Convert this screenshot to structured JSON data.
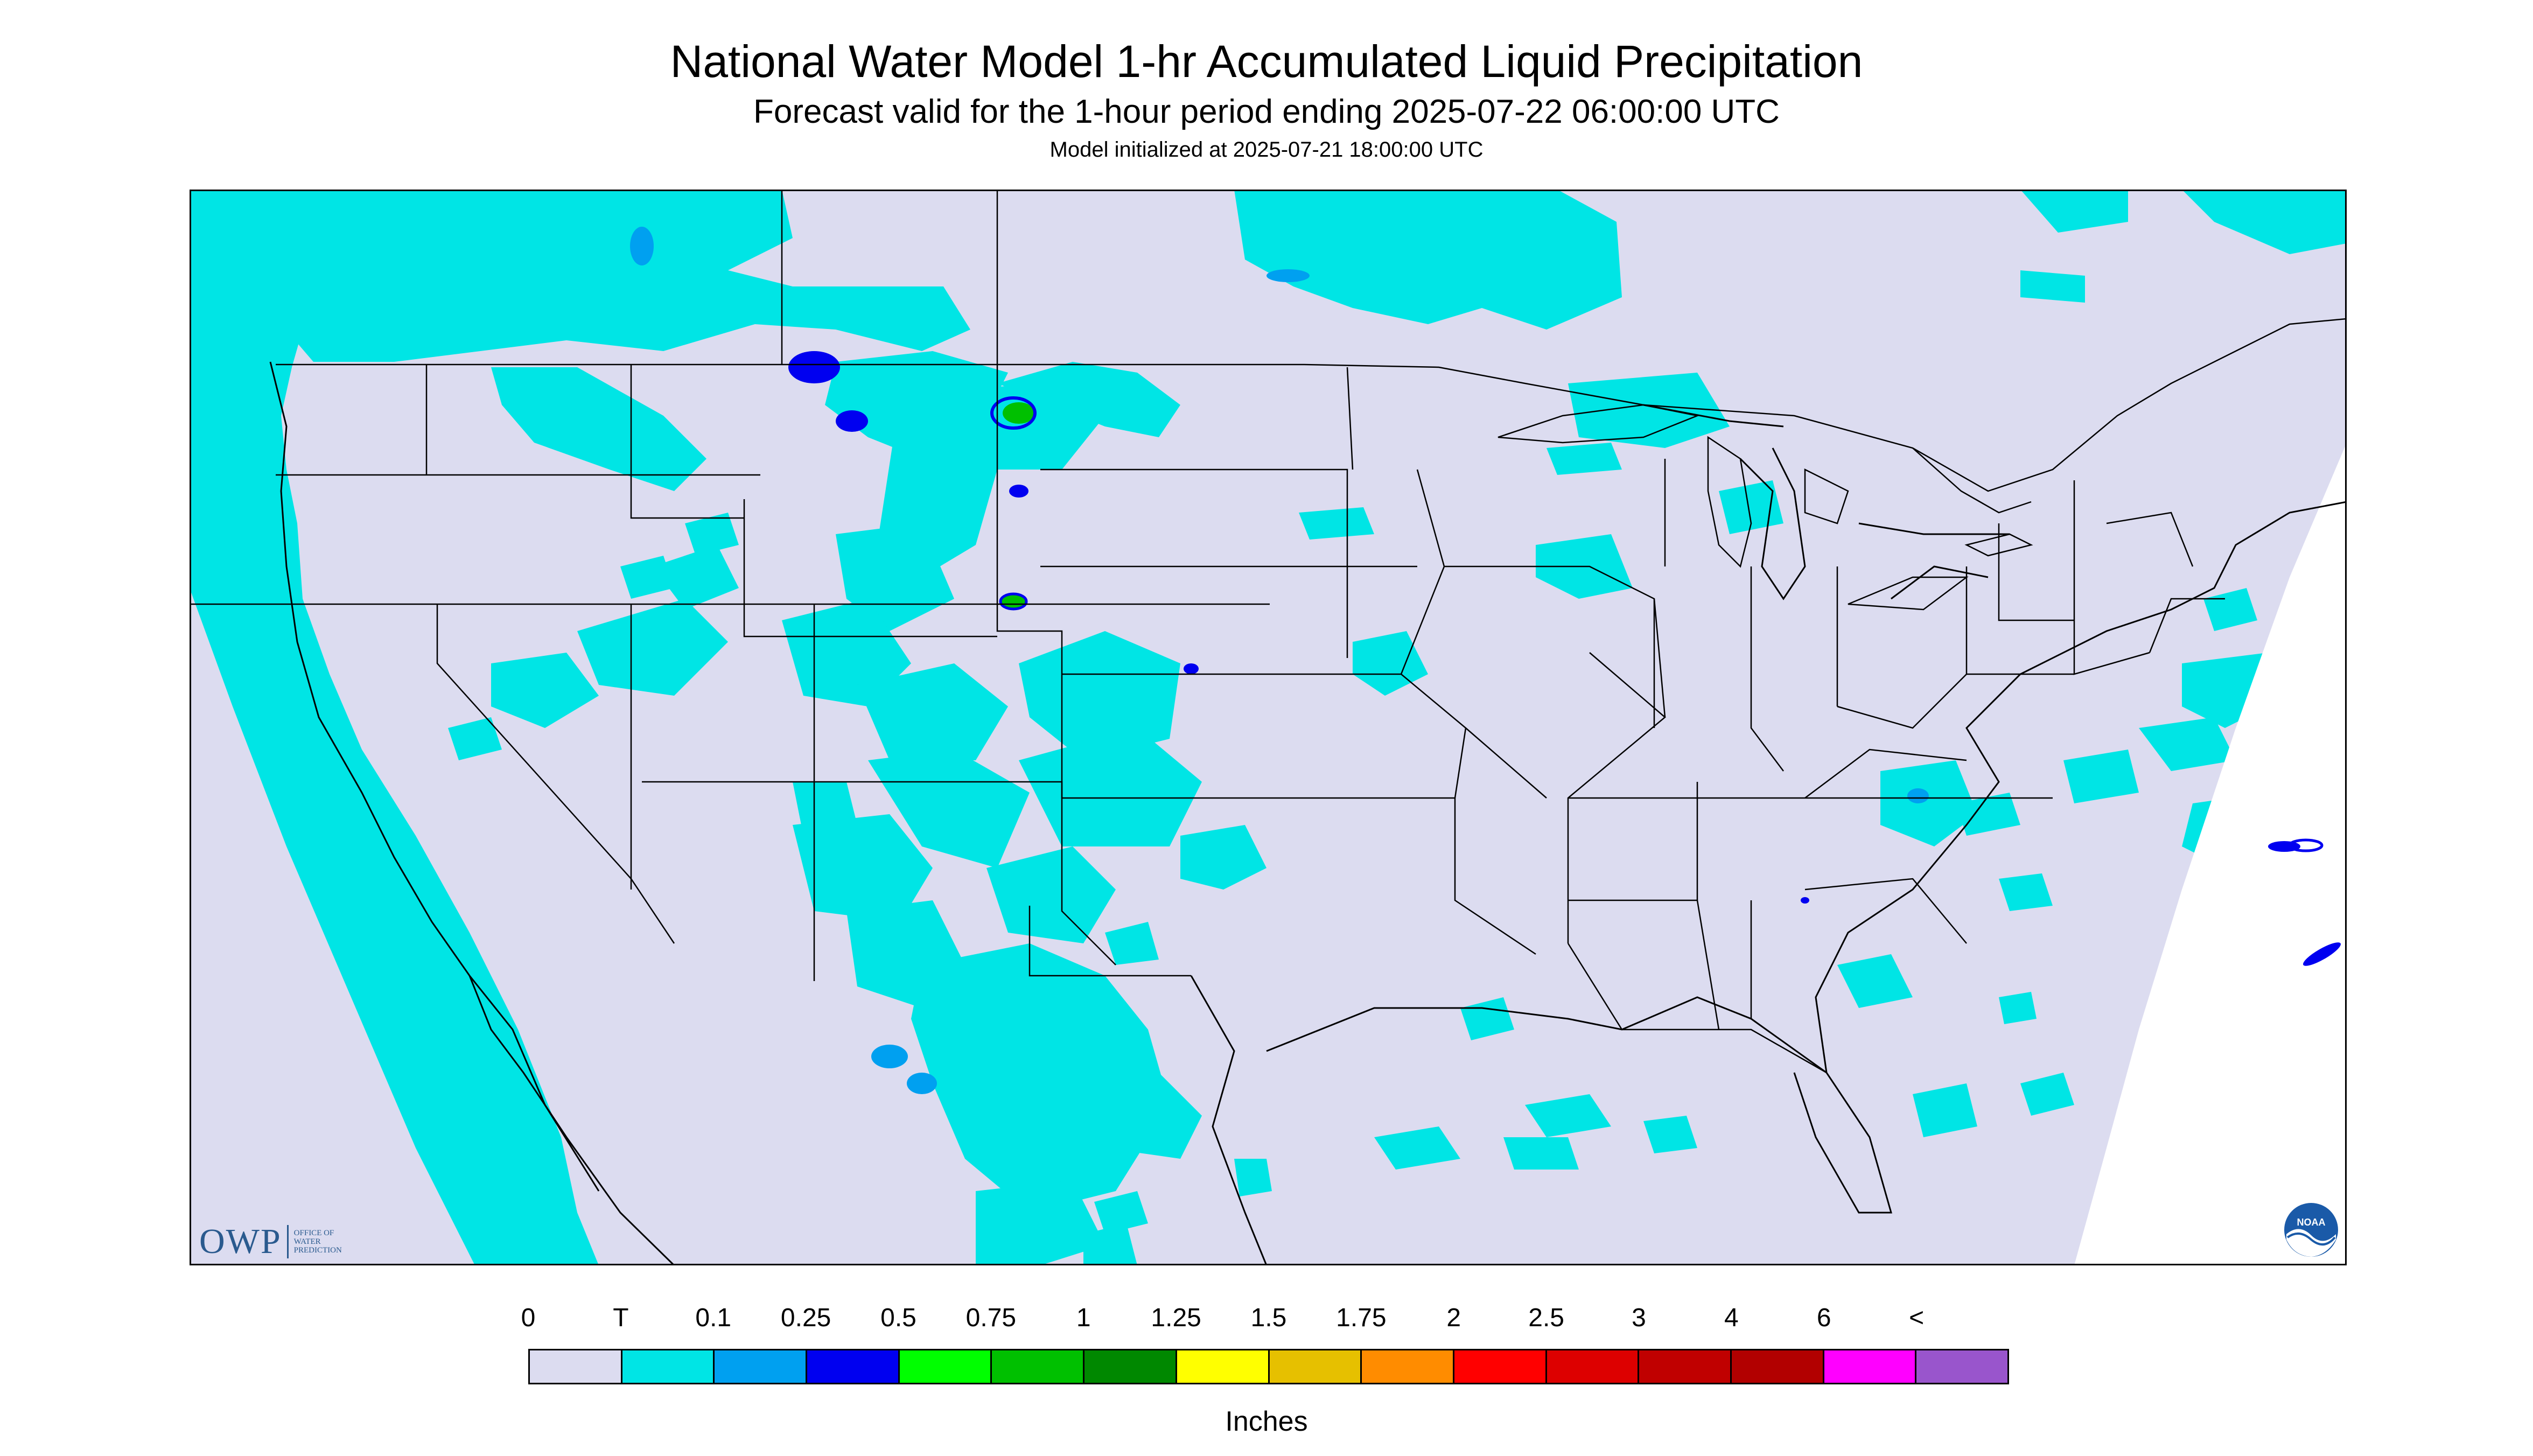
{
  "header": {
    "title": "National Water Model 1-hr Accumulated Liquid Precipitation",
    "subtitle": "Forecast valid for the 1-hour period ending 2025-07-22 06:00:00 UTC",
    "init": "Model initialized at 2025-07-21 18:00:00 UTC"
  },
  "map": {
    "icon": "precipitation-map",
    "colors": {
      "background": "#dcdcf0",
      "trace": "#00e5e5",
      "light": "#00a0f0",
      "moderate": "#0000f0",
      "heavy": "#00c000",
      "boundary": "#000000"
    }
  },
  "legend": {
    "labels": [
      "0",
      "T",
      "0.1",
      "0.25",
      "0.5",
      "0.75",
      "1",
      "1.25",
      "1.5",
      "1.75",
      "2",
      "2.5",
      "3",
      "4",
      "6",
      "<"
    ],
    "colors": [
      "#dcdcf0",
      "#00e5e5",
      "#00a0f0",
      "#0000f0",
      "#00ff00",
      "#00c000",
      "#008800",
      "#ffff00",
      "#e6c000",
      "#ff8c00",
      "#ff0000",
      "#dd0000",
      "#c00000",
      "#b20000",
      "#ff00ff",
      "#9955cc"
    ],
    "units": "Inches"
  },
  "logos": {
    "owp": {
      "mark": "OWP",
      "line1": "OFFICE OF",
      "line2": "WATER",
      "line3": "PREDICTION"
    },
    "noaa": {
      "text": "NOAA",
      "icon": "noaa-logo-icon"
    }
  }
}
